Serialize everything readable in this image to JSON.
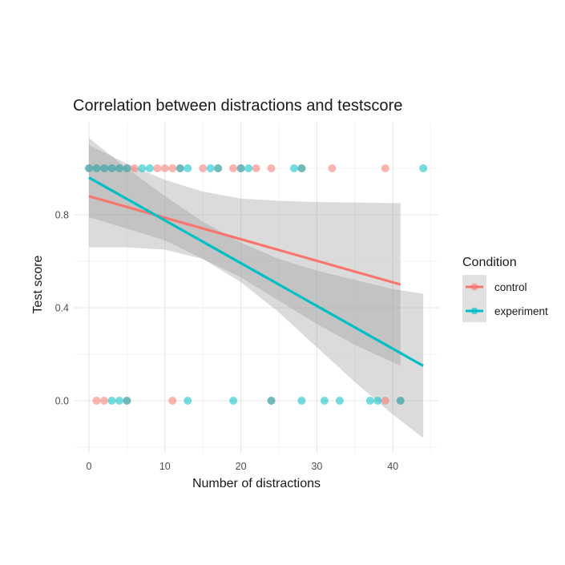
{
  "chart_data": {
    "type": "scatter",
    "title": "Correlation between distractions and testscore",
    "xlabel": "Number of distractions",
    "ylabel": "Test score",
    "xlim": [
      -2,
      46
    ],
    "ylim": [
      -0.22,
      1.22
    ],
    "x_ticks": [
      0,
      10,
      20,
      30,
      40
    ],
    "x_tick_labels": [
      "0",
      "10",
      "20",
      "30",
      "40"
    ],
    "x_minor_ticks": [
      5,
      15,
      25,
      35,
      45
    ],
    "y_ticks": [
      0.0,
      0.4,
      0.8
    ],
    "y_tick_labels": [
      "0.0",
      "0.4",
      "0.8"
    ],
    "y_minor_ticks": [
      -0.2,
      0.2,
      0.6,
      1.0
    ],
    "grid": true,
    "legend": {
      "title": "Condition",
      "position": "right",
      "entries": [
        "control",
        "experiment"
      ]
    },
    "series": [
      {
        "name": "control",
        "color": "#F8766D",
        "points": [
          {
            "x": 0,
            "y": 1
          },
          {
            "x": 1,
            "y": 1
          },
          {
            "x": 2,
            "y": 1
          },
          {
            "x": 3,
            "y": 1
          },
          {
            "x": 4,
            "y": 1
          },
          {
            "x": 5,
            "y": 1
          },
          {
            "x": 6,
            "y": 1
          },
          {
            "x": 9,
            "y": 1
          },
          {
            "x": 10,
            "y": 1
          },
          {
            "x": 11,
            "y": 1
          },
          {
            "x": 12,
            "y": 1
          },
          {
            "x": 15,
            "y": 1
          },
          {
            "x": 17,
            "y": 1
          },
          {
            "x": 19,
            "y": 1
          },
          {
            "x": 20,
            "y": 1
          },
          {
            "x": 22,
            "y": 1
          },
          {
            "x": 24,
            "y": 1
          },
          {
            "x": 28,
            "y": 1
          },
          {
            "x": 32,
            "y": 1
          },
          {
            "x": 39,
            "y": 1
          },
          {
            "x": 1,
            "y": 0
          },
          {
            "x": 2,
            "y": 0
          },
          {
            "x": 5,
            "y": 0
          },
          {
            "x": 11,
            "y": 0
          },
          {
            "x": 24,
            "y": 0
          },
          {
            "x": 39,
            "y": 0
          },
          {
            "x": 41,
            "y": 0
          }
        ],
        "fit": {
          "x": [
            0,
            41
          ],
          "y": [
            0.88,
            0.5
          ]
        },
        "ci_band": {
          "x": [
            0,
            5,
            10,
            15,
            20,
            25,
            30,
            35,
            41
          ],
          "upper": [
            1.1,
            1.02,
            0.95,
            0.9,
            0.87,
            0.86,
            0.855,
            0.853,
            0.85
          ],
          "lower": [
            0.66,
            0.66,
            0.65,
            0.61,
            0.53,
            0.43,
            0.33,
            0.24,
            0.15
          ]
        }
      },
      {
        "name": "experiment",
        "color": "#00BFC4",
        "points": [
          {
            "x": 0,
            "y": 1
          },
          {
            "x": 1,
            "y": 1
          },
          {
            "x": 2,
            "y": 1
          },
          {
            "x": 3,
            "y": 1
          },
          {
            "x": 4,
            "y": 1
          },
          {
            "x": 5,
            "y": 1
          },
          {
            "x": 7,
            "y": 1
          },
          {
            "x": 8,
            "y": 1
          },
          {
            "x": 12,
            "y": 1
          },
          {
            "x": 13,
            "y": 1
          },
          {
            "x": 16,
            "y": 1
          },
          {
            "x": 17,
            "y": 1
          },
          {
            "x": 20,
            "y": 1
          },
          {
            "x": 21,
            "y": 1
          },
          {
            "x": 27,
            "y": 1
          },
          {
            "x": 28,
            "y": 1
          },
          {
            "x": 44,
            "y": 1
          },
          {
            "x": 3,
            "y": 0
          },
          {
            "x": 4,
            "y": 0
          },
          {
            "x": 5,
            "y": 0
          },
          {
            "x": 13,
            "y": 0
          },
          {
            "x": 19,
            "y": 0
          },
          {
            "x": 24,
            "y": 0
          },
          {
            "x": 28,
            "y": 0
          },
          {
            "x": 31,
            "y": 0
          },
          {
            "x": 33,
            "y": 0
          },
          {
            "x": 37,
            "y": 0
          },
          {
            "x": 38,
            "y": 0
          },
          {
            "x": 41,
            "y": 0
          }
        ],
        "fit": {
          "x": [
            0,
            44
          ],
          "y": [
            0.96,
            0.15
          ]
        },
        "ci_band": {
          "x": [
            0,
            5,
            10,
            15,
            20,
            25,
            30,
            35,
            40,
            44
          ],
          "upper": [
            1.13,
            1.0,
            0.88,
            0.77,
            0.68,
            0.61,
            0.56,
            0.52,
            0.48,
            0.46
          ],
          "lower": [
            0.79,
            0.74,
            0.69,
            0.61,
            0.51,
            0.38,
            0.23,
            0.08,
            -0.06,
            -0.16
          ]
        }
      }
    ]
  }
}
